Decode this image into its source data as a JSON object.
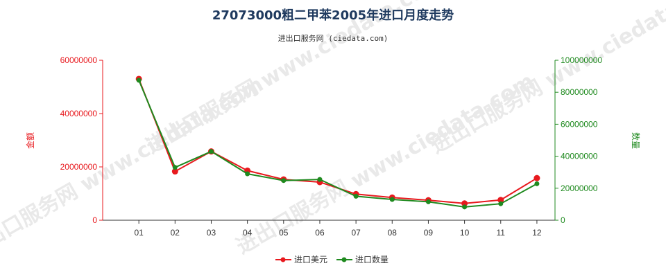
{
  "chart_data": {
    "type": "line",
    "title": "27073000粗二甲苯2005年进口月度走势",
    "subtitle": "进出口服务网 (ciedata.com)",
    "watermark": "进出口服务网 www.ciedata.com",
    "categories": [
      "01",
      "02",
      "03",
      "04",
      "05",
      "06",
      "07",
      "08",
      "09",
      "10",
      "11",
      "12"
    ],
    "y_left": {
      "label": "金额",
      "lim": [
        0,
        60000000
      ],
      "ticks": [
        0,
        20000000,
        40000000,
        60000000
      ],
      "tick_labels": [
        "0",
        "20000000",
        "40000000",
        "60000000"
      ],
      "color": "#e8191e"
    },
    "y_right": {
      "label": "数量",
      "lim": [
        0,
        100000000
      ],
      "ticks": [
        0,
        20000000,
        40000000,
        60000000,
        80000000,
        100000000
      ],
      "tick_labels": [
        "0",
        "20000000",
        "40000000",
        "60000000",
        "80000000",
        "100000000"
      ],
      "color": "#1f8a1f"
    },
    "series": [
      {
        "name": "进口美元",
        "axis": "left",
        "color": "#e8191e",
        "values": [
          53000000,
          18300000,
          25800000,
          18600000,
          15300000,
          14300000,
          9800000,
          8500000,
          7500000,
          6300000,
          7600000,
          15800000
        ]
      },
      {
        "name": "进口数量",
        "axis": "right",
        "color": "#1f8a1f",
        "values": [
          87500000,
          33000000,
          43000000,
          29000000,
          24800000,
          25500000,
          15000000,
          13000000,
          11500000,
          8300000,
          10300000,
          22800000
        ]
      }
    ],
    "legend_position": "bottom",
    "grid": false
  }
}
